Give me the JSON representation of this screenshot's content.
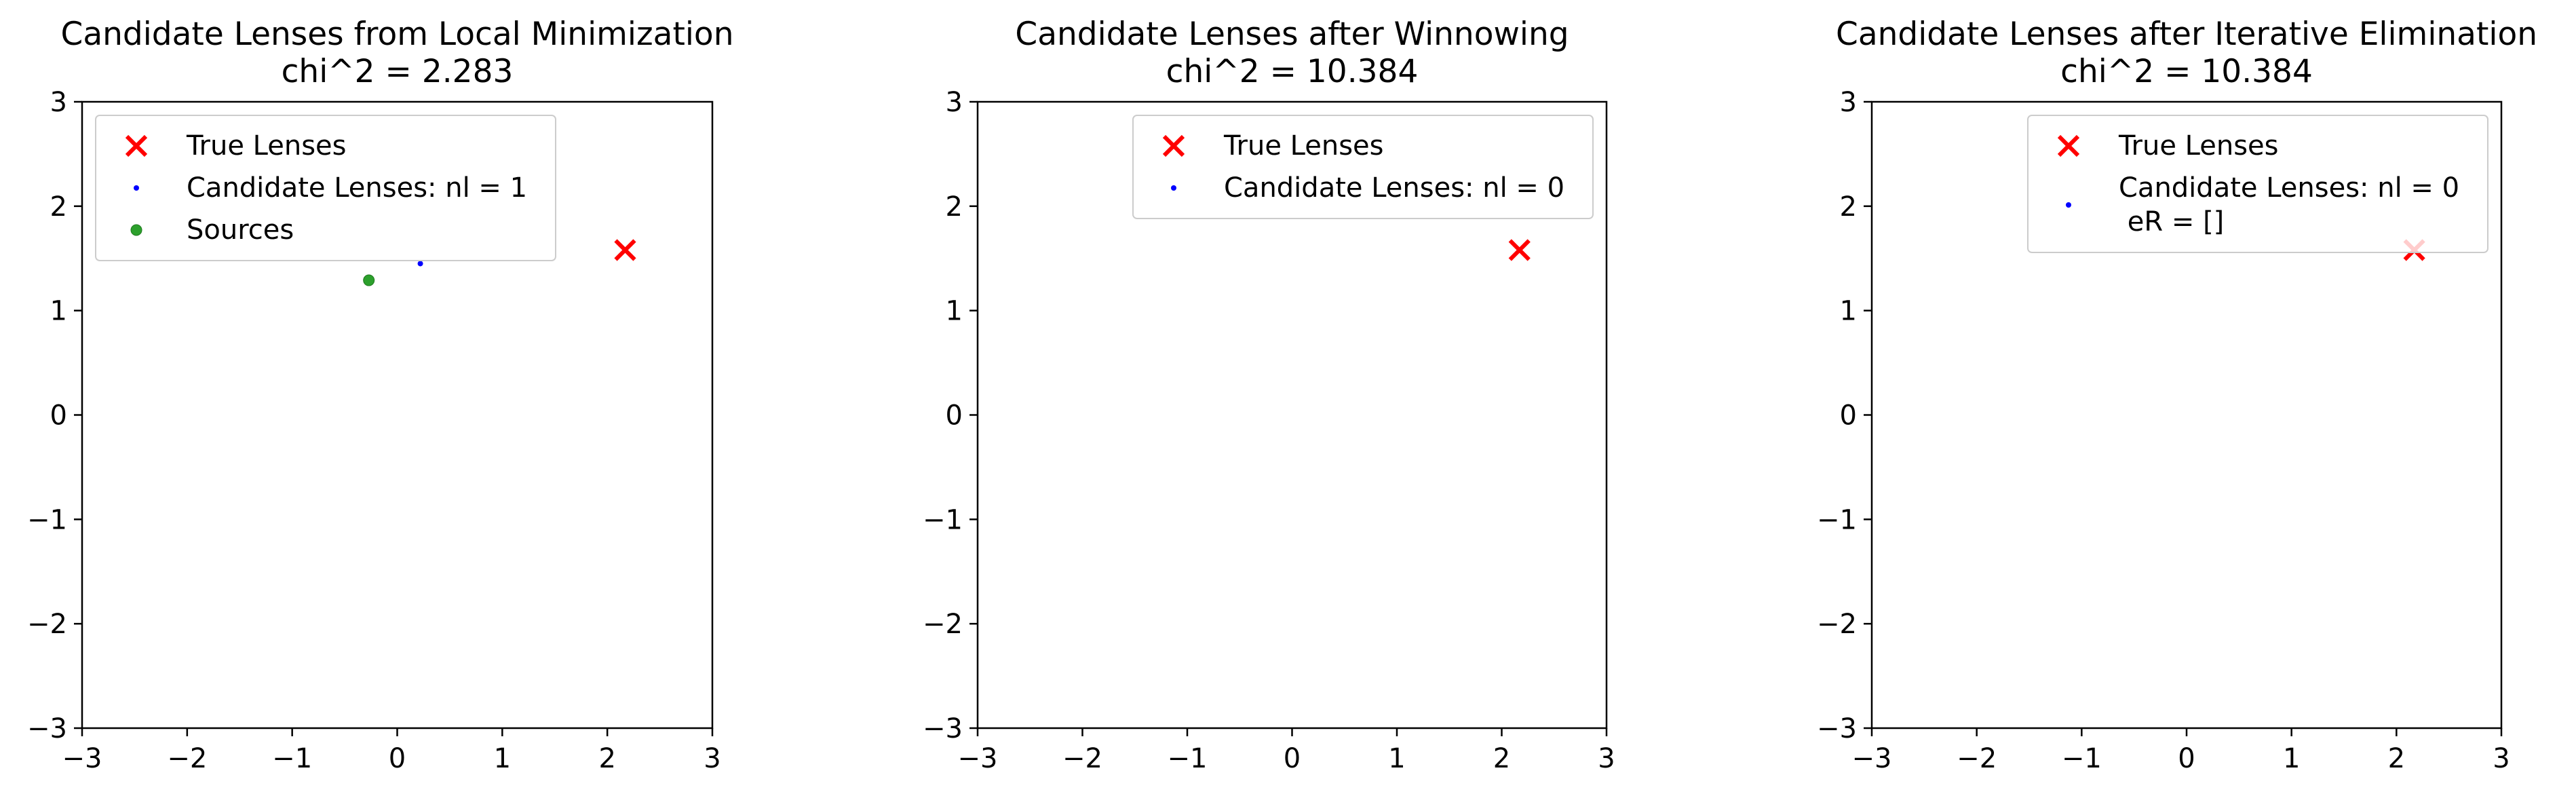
{
  "chart_data": [
    {
      "type": "scatter",
      "title": "Candidate Lenses from Local Minimization",
      "subtitle": "chi^2 = 2.283",
      "xlim": [
        -3,
        3
      ],
      "ylim": [
        -3,
        3
      ],
      "xticks": [
        -3,
        -2,
        -1,
        0,
        1,
        2,
        3
      ],
      "yticks": [
        -3,
        -2,
        -1,
        0,
        1,
        2,
        3
      ],
      "xtick_labels": [
        "−3",
        "−2",
        "−1",
        "0",
        "1",
        "2",
        "3"
      ],
      "ytick_labels": [
        "−3",
        "−2",
        "−1",
        "0",
        "1",
        "2",
        "3"
      ],
      "grid": false,
      "legend_position": "top-left",
      "series": [
        {
          "name": "True Lenses",
          "marker": "x",
          "color": "#ff0000",
          "points": [
            [
              2.17,
              1.58
            ]
          ]
        },
        {
          "name": "Candidate Lenses: nl = 1",
          "marker": "dot",
          "color": "#0000ff",
          "points": [
            [
              0.22,
              1.45
            ]
          ]
        },
        {
          "name": "Sources",
          "marker": "circle",
          "color": "#2ca02c",
          "points": [
            [
              -0.27,
              1.29
            ]
          ]
        }
      ]
    },
    {
      "type": "scatter",
      "title": "Candidate Lenses after Winnowing",
      "subtitle": "chi^2 = 10.384",
      "xlim": [
        -3,
        3
      ],
      "ylim": [
        -3,
        3
      ],
      "xticks": [
        -3,
        -2,
        -1,
        0,
        1,
        2,
        3
      ],
      "yticks": [
        -3,
        -2,
        -1,
        0,
        1,
        2,
        3
      ],
      "xtick_labels": [
        "−3",
        "−2",
        "−1",
        "0",
        "1",
        "2",
        "3"
      ],
      "ytick_labels": [
        "−3",
        "−2",
        "−1",
        "0",
        "1",
        "2",
        "3"
      ],
      "grid": false,
      "legend_position": "top-right",
      "series": [
        {
          "name": "True Lenses",
          "marker": "x",
          "color": "#ff0000",
          "points": [
            [
              2.17,
              1.58
            ]
          ]
        },
        {
          "name": "Candidate Lenses: nl = 0",
          "marker": "dot",
          "color": "#0000ff",
          "points": []
        }
      ]
    },
    {
      "type": "scatter",
      "title": "Candidate Lenses after Iterative Elimination",
      "subtitle": "chi^2 = 10.384",
      "xlim": [
        -3,
        3
      ],
      "ylim": [
        -3,
        3
      ],
      "xticks": [
        -3,
        -2,
        -1,
        0,
        1,
        2,
        3
      ],
      "yticks": [
        -3,
        -2,
        -1,
        0,
        1,
        2,
        3
      ],
      "xtick_labels": [
        "−3",
        "−2",
        "−1",
        "0",
        "1",
        "2",
        "3"
      ],
      "ytick_labels": [
        "−3",
        "−2",
        "−1",
        "0",
        "1",
        "2",
        "3"
      ],
      "grid": false,
      "legend_position": "top-right",
      "series": [
        {
          "name": "True Lenses",
          "marker": "x",
          "color": "#ff0000",
          "points": [
            [
              2.17,
              1.58
            ]
          ]
        },
        {
          "name": "Candidate Lenses: nl = 0\n eR = []",
          "marker": "dot",
          "color": "#0000ff",
          "points": []
        }
      ]
    }
  ]
}
